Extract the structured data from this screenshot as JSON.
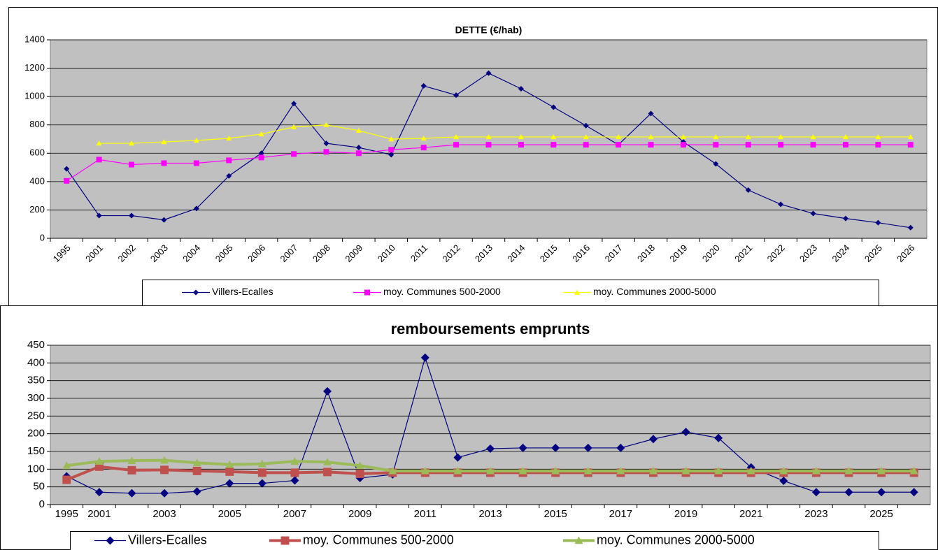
{
  "chart_data": [
    {
      "type": "line",
      "title": "DETTE (€/hab)",
      "categories": [
        "1995",
        "2001",
        "2002",
        "2003",
        "2004",
        "2005",
        "2006",
        "2007",
        "2008",
        "2009",
        "2010",
        "2011",
        "2012",
        "2013",
        "2014",
        "2015",
        "2016",
        "2017",
        "2018",
        "2019",
        "2020",
        "2021",
        "2022",
        "2023",
        "2024",
        "2025",
        "2026"
      ],
      "series": [
        {
          "name": "Villers-Ecalles",
          "color": "#000080",
          "values": [
            490,
            160,
            160,
            130,
            210,
            440,
            600,
            950,
            670,
            640,
            590,
            1075,
            1010,
            1165,
            1055,
            925,
            795,
            660,
            880,
            680,
            525,
            340,
            240,
            175,
            140,
            110,
            75
          ]
        },
        {
          "name": "moy. Communes 500-2000",
          "color": "#ff00ff",
          "values": [
            405,
            555,
            520,
            530,
            530,
            550,
            570,
            595,
            610,
            600,
            625,
            640,
            660,
            660,
            660,
            660,
            660,
            660,
            660,
            660,
            660,
            660,
            660,
            660,
            660,
            660,
            660
          ]
        },
        {
          "name": "moy. Communes 2000-5000",
          "color": "#ffff00",
          "values": [
            null,
            670,
            670,
            680,
            690,
            705,
            735,
            785,
            800,
            760,
            700,
            705,
            715,
            715,
            715,
            715,
            715,
            715,
            715,
            715,
            715,
            715,
            715,
            715,
            715,
            715,
            715
          ]
        }
      ],
      "ylim": [
        0,
        1400
      ],
      "yticks": [
        0,
        200,
        400,
        600,
        800,
        1000,
        1200,
        1400
      ],
      "grid": true
    },
    {
      "type": "line",
      "title": "remboursements  emprunts",
      "categories": [
        "1995",
        "2001",
        null,
        "2003",
        null,
        "2005",
        null,
        "2007",
        null,
        "2009",
        null,
        "2011",
        null,
        "2013",
        null,
        "2015",
        null,
        "2017",
        null,
        "2019",
        null,
        "2021",
        null,
        "2023",
        null,
        "2025",
        null
      ],
      "series": [
        {
          "name": "Villers-Ecalles",
          "color": "#000080",
          "values": [
            80,
            35,
            32,
            32,
            37,
            60,
            60,
            68,
            320,
            75,
            85,
            415,
            133,
            158,
            160,
            160,
            160,
            160,
            185,
            205,
            188,
            105,
            67,
            35,
            35,
            35,
            35
          ]
        },
        {
          "name": "moy. Communes 500-2000",
          "color": "#c0504d",
          "values": [
            70,
            107,
            97,
            98,
            95,
            93,
            90,
            90,
            92,
            87,
            90,
            90,
            90,
            90,
            90,
            90,
            90,
            90,
            90,
            90,
            90,
            90,
            90,
            90,
            90,
            90,
            90
          ]
        },
        {
          "name": "moy. Communes 2000-5000",
          "color": "#9bbb59",
          "values": [
            110,
            122,
            124,
            125,
            118,
            113,
            115,
            122,
            120,
            110,
            95,
            95,
            95,
            95,
            95,
            95,
            95,
            95,
            95,
            95,
            95,
            95,
            95,
            95,
            95,
            95,
            95
          ]
        }
      ],
      "ylim": [
        0,
        450
      ],
      "yticks": [
        0,
        50,
        100,
        150,
        200,
        250,
        300,
        350,
        400,
        450
      ],
      "grid": true
    }
  ]
}
